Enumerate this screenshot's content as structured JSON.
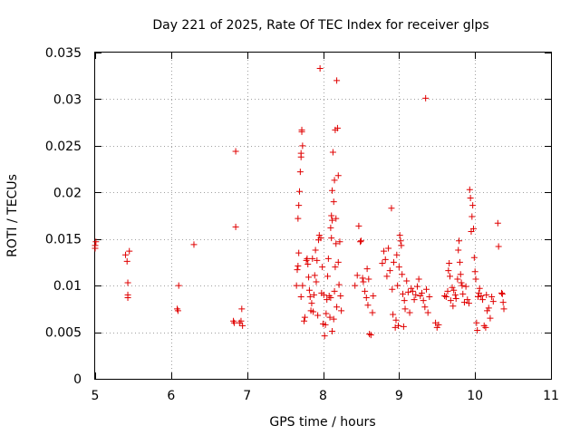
{
  "chart_data": {
    "type": "scatter",
    "title": "Day 221 of 2025, Rate Of TEC Index for receiver glps",
    "xlabel": "GPS time / hours",
    "ylabel": "ROTI / TECUs",
    "xlim": [
      5,
      11
    ],
    "ylim": [
      0,
      0.035
    ],
    "xticks": [
      5,
      6,
      7,
      8,
      9,
      10,
      11
    ],
    "xtick_labels": [
      "5",
      "6",
      "7",
      "8",
      "9",
      "10",
      "11"
    ],
    "yticks": [
      0,
      0.005,
      0.01,
      0.015,
      0.02,
      0.025,
      0.03,
      0.035
    ],
    "ytick_labels": [
      "0",
      "0.005",
      "0.01",
      "0.015",
      "0.02",
      "0.025",
      "0.03",
      "0.035"
    ],
    "grid": true,
    "marker": "+",
    "point_color": "#e00000",
    "series": [
      {
        "name": "ROTI",
        "points": [
          [
            5.0,
            0.014
          ],
          [
            5.0,
            0.0143
          ],
          [
            5.01,
            0.0147
          ],
          [
            5.4,
            0.0133
          ],
          [
            5.42,
            0.0126
          ],
          [
            5.45,
            0.0137
          ],
          [
            5.43,
            0.0103
          ],
          [
            5.43,
            0.009
          ],
          [
            5.43,
            0.0087
          ],
          [
            6.08,
            0.0075
          ],
          [
            6.09,
            0.0073
          ],
          [
            6.1,
            0.01
          ],
          [
            6.3,
            0.0144
          ],
          [
            6.82,
            0.0062
          ],
          [
            6.83,
            0.006
          ],
          [
            6.85,
            0.0163
          ],
          [
            6.85,
            0.0244
          ],
          [
            6.9,
            0.006
          ],
          [
            6.92,
            0.0062
          ],
          [
            6.93,
            0.0075
          ],
          [
            6.94,
            0.0057
          ],
          [
            7.65,
            0.01
          ],
          [
            7.66,
            0.0117
          ],
          [
            7.67,
            0.0121
          ],
          [
            7.67,
            0.0172
          ],
          [
            7.68,
            0.0186
          ],
          [
            7.69,
            0.0201
          ],
          [
            7.7,
            0.0222
          ],
          [
            7.71,
            0.0238
          ],
          [
            7.71,
            0.0242
          ],
          [
            7.72,
            0.0265
          ],
          [
            7.73,
            0.025
          ],
          [
            7.72,
            0.0267
          ],
          [
            7.68,
            0.0135
          ],
          [
            7.71,
            0.0088
          ],
          [
            7.73,
            0.01
          ],
          [
            7.75,
            0.0062
          ],
          [
            7.76,
            0.0066
          ],
          [
            7.78,
            0.0127
          ],
          [
            7.79,
            0.0129
          ],
          [
            7.8,
            0.0123
          ],
          [
            7.81,
            0.0109
          ],
          [
            7.82,
            0.0095
          ],
          [
            7.83,
            0.0088
          ],
          [
            7.84,
            0.0073
          ],
          [
            7.85,
            0.0081
          ],
          [
            7.86,
            0.0129
          ],
          [
            7.87,
            0.0072
          ],
          [
            7.88,
            0.009
          ],
          [
            7.89,
            0.0111
          ],
          [
            7.9,
            0.0138
          ],
          [
            7.91,
            0.0104
          ],
          [
            7.92,
            0.0127
          ],
          [
            7.93,
            0.0068
          ],
          [
            7.94,
            0.0149
          ],
          [
            7.95,
            0.0154
          ],
          [
            7.96,
            0.0333
          ],
          [
            7.97,
            0.0151
          ],
          [
            7.98,
            0.0092
          ],
          [
            7.99,
            0.012
          ],
          [
            8.0,
            0.0059
          ],
          [
            8.01,
            0.009
          ],
          [
            8.02,
            0.0046
          ],
          [
            8.03,
            0.0058
          ],
          [
            8.04,
            0.007
          ],
          [
            8.05,
            0.0085
          ],
          [
            8.06,
            0.011
          ],
          [
            8.07,
            0.0129
          ],
          [
            8.08,
            0.0089
          ],
          [
            8.09,
            0.0066
          ],
          [
            8.1,
            0.0087
          ],
          [
            8.11,
            0.0151
          ],
          [
            8.12,
            0.017
          ],
          [
            8.12,
            0.0202
          ],
          [
            8.13,
            0.0243
          ],
          [
            8.14,
            0.019
          ],
          [
            8.15,
            0.0213
          ],
          [
            8.16,
            0.0267
          ],
          [
            8.17,
            0.0172
          ],
          [
            8.18,
            0.032
          ],
          [
            8.19,
            0.0269
          ],
          [
            8.2,
            0.0218
          ],
          [
            8.2,
            0.0125
          ],
          [
            8.21,
            0.0101
          ],
          [
            8.22,
            0.0147
          ],
          [
            8.23,
            0.0089
          ],
          [
            8.24,
            0.0073
          ],
          [
            8.17,
            0.0145
          ],
          [
            8.16,
            0.012
          ],
          [
            8.15,
            0.0094
          ],
          [
            8.14,
            0.0064
          ],
          [
            8.18,
            0.0077
          ],
          [
            8.12,
            0.0051
          ],
          [
            8.11,
            0.0175
          ],
          [
            8.1,
            0.0162
          ],
          [
            8.42,
            0.01
          ],
          [
            8.45,
            0.0111
          ],
          [
            8.47,
            0.0164
          ],
          [
            8.49,
            0.0147
          ],
          [
            8.5,
            0.0148
          ],
          [
            8.52,
            0.0108
          ],
          [
            8.53,
            0.0104
          ],
          [
            8.55,
            0.0094
          ],
          [
            8.57,
            0.0087
          ],
          [
            8.59,
            0.0079
          ],
          [
            8.61,
            0.0048
          ],
          [
            8.63,
            0.0047
          ],
          [
            8.65,
            0.0071
          ],
          [
            8.66,
            0.0089
          ],
          [
            8.58,
            0.0118
          ],
          [
            8.6,
            0.0107
          ],
          [
            8.78,
            0.0124
          ],
          [
            8.8,
            0.0137
          ],
          [
            8.82,
            0.0128
          ],
          [
            8.84,
            0.011
          ],
          [
            8.86,
            0.014
          ],
          [
            8.88,
            0.0116
          ],
          [
            8.9,
            0.0183
          ],
          [
            8.91,
            0.0096
          ],
          [
            8.92,
            0.0069
          ],
          [
            8.93,
            0.0125
          ],
          [
            8.95,
            0.0055
          ],
          [
            8.96,
            0.0063
          ],
          [
            8.97,
            0.0133
          ],
          [
            8.98,
            0.01
          ],
          [
            8.99,
            0.0057
          ],
          [
            9.0,
            0.012
          ],
          [
            9.01,
            0.0154
          ],
          [
            9.02,
            0.0148
          ],
          [
            9.03,
            0.0143
          ],
          [
            9.04,
            0.0112
          ],
          [
            9.05,
            0.0091
          ],
          [
            9.06,
            0.0056
          ],
          [
            9.07,
            0.0084
          ],
          [
            9.08,
            0.0075
          ],
          [
            9.1,
            0.0105
          ],
          [
            9.12,
            0.0093
          ],
          [
            9.14,
            0.0071
          ],
          [
            9.16,
            0.0097
          ],
          [
            9.18,
            0.0094
          ],
          [
            9.2,
            0.0085
          ],
          [
            9.22,
            0.009
          ],
          [
            9.24,
            0.0099
          ],
          [
            9.26,
            0.0107
          ],
          [
            9.28,
            0.0089
          ],
          [
            9.3,
            0.0092
          ],
          [
            9.32,
            0.0084
          ],
          [
            9.34,
            0.0077
          ],
          [
            9.35,
            0.0301
          ],
          [
            9.36,
            0.0096
          ],
          [
            9.38,
            0.0071
          ],
          [
            9.4,
            0.0088
          ],
          [
            9.48,
            0.006
          ],
          [
            9.5,
            0.0055
          ],
          [
            9.52,
            0.0058
          ],
          [
            9.6,
            0.0089
          ],
          [
            9.62,
            0.0088
          ],
          [
            9.64,
            0.0094
          ],
          [
            9.65,
            0.0116
          ],
          [
            9.66,
            0.0124
          ],
          [
            9.67,
            0.011
          ],
          [
            9.68,
            0.0084
          ],
          [
            9.7,
            0.0098
          ],
          [
            9.71,
            0.0078
          ],
          [
            9.72,
            0.0095
          ],
          [
            9.74,
            0.009
          ],
          [
            9.75,
            0.0086
          ],
          [
            9.77,
            0.0107
          ],
          [
            9.78,
            0.0138
          ],
          [
            9.79,
            0.0148
          ],
          [
            9.8,
            0.0125
          ],
          [
            9.81,
            0.0112
          ],
          [
            9.82,
            0.0103
          ],
          [
            9.83,
            0.01
          ],
          [
            9.84,
            0.0091
          ],
          [
            9.86,
            0.0082
          ],
          [
            9.88,
            0.0099
          ],
          [
            9.9,
            0.0085
          ],
          [
            9.92,
            0.0081
          ],
          [
            9.93,
            0.0203
          ],
          [
            9.94,
            0.0194
          ],
          [
            9.95,
            0.0158
          ],
          [
            9.96,
            0.0174
          ],
          [
            9.97,
            0.0186
          ],
          [
            9.98,
            0.0161
          ],
          [
            9.99,
            0.013
          ],
          [
            10.0,
            0.0115
          ],
          [
            10.01,
            0.0107
          ],
          [
            10.02,
            0.006
          ],
          [
            10.03,
            0.0052
          ],
          [
            10.04,
            0.0088
          ],
          [
            10.05,
            0.0092
          ],
          [
            10.06,
            0.0097
          ],
          [
            10.08,
            0.0089
          ],
          [
            10.1,
            0.0085
          ],
          [
            10.12,
            0.0057
          ],
          [
            10.14,
            0.0055
          ],
          [
            10.15,
            0.009
          ],
          [
            10.16,
            0.0073
          ],
          [
            10.18,
            0.0076
          ],
          [
            10.2,
            0.0065
          ],
          [
            10.22,
            0.0088
          ],
          [
            10.24,
            0.0083
          ],
          [
            10.3,
            0.0167
          ],
          [
            10.31,
            0.0142
          ],
          [
            10.35,
            0.0092
          ],
          [
            10.36,
            0.0091
          ],
          [
            10.37,
            0.0082
          ],
          [
            10.38,
            0.0075
          ]
        ]
      }
    ]
  }
}
